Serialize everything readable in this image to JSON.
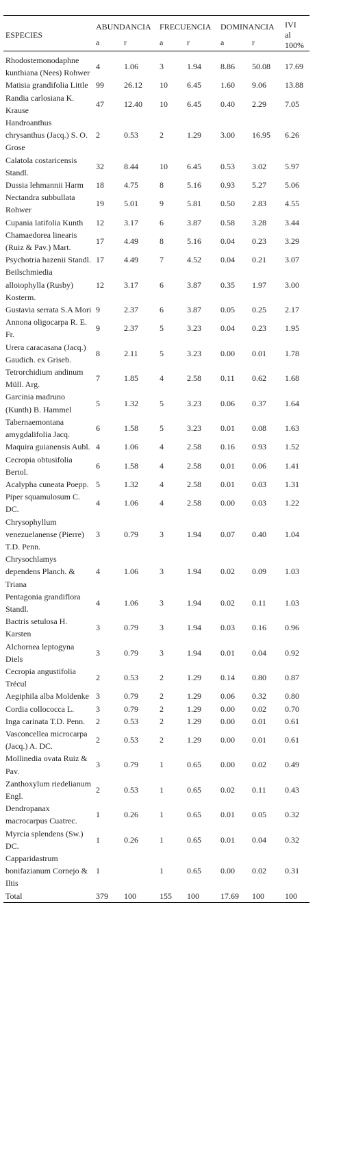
{
  "table": {
    "headers": {
      "species": "ESPECIES",
      "groups": [
        "ABUNDANCIA",
        "FRECUENCIA",
        "DOMINANCIA"
      ],
      "ivi": [
        "IVI",
        "al",
        "100%"
      ],
      "sub": [
        "a",
        "r",
        "a",
        "r",
        "a",
        "r"
      ]
    },
    "rows": [
      [
        "Rhodostemonodaphne kunthiana (Nees) Rohwer",
        "4",
        "1.06",
        "3",
        "1.94",
        "8.86",
        "50.08",
        "17.69"
      ],
      [
        "Matisia grandifolia Little",
        "99",
        "26.12",
        "10",
        "6.45",
        "1.60",
        "9.06",
        "13.88"
      ],
      [
        "Randia carlosiana K. Krause",
        "47",
        "12.40",
        "10",
        "6.45",
        "0.40",
        "2.29",
        "7.05"
      ],
      [
        "Handroanthus chrysanthus (Jacq.) S. O. Grose",
        "2",
        "0.53",
        "2",
        "1.29",
        "3.00",
        "16.95",
        "6.26"
      ],
      [
        "Calatola costaricensis Standl.",
        "32",
        "8.44",
        "10",
        "6.45",
        "0.53",
        "3.02",
        "5.97"
      ],
      [
        "Dussia lehmannii Harm",
        "18",
        "4.75",
        "8",
        "5.16",
        "0.93",
        "5.27",
        "5.06"
      ],
      [
        "Nectandra subbullata Rohwer",
        "19",
        "5.01",
        "9",
        "5.81",
        "0.50",
        "2.83",
        "4.55"
      ],
      [
        "Cupania latifolia Kunth",
        "12",
        "3.17",
        "6",
        "3.87",
        "0.58",
        "3.28",
        "3.44"
      ],
      [
        "Chamaedorea linearis (Ruiz & Pav.) Mart.",
        "17",
        "4.49",
        "8",
        "5.16",
        "0.04",
        "0.23",
        "3.29"
      ],
      [
        "Psychotria hazenii Standl.",
        "17",
        "4.49",
        "7",
        "4.52",
        "0.04",
        "0.21",
        "3.07"
      ],
      [
        "Beilschmiedia alloiophylla (Rusby) Kosterm.",
        "12",
        "3.17",
        "6",
        "3.87",
        "0.35",
        "1.97",
        "3.00"
      ],
      [
        "Gustavia serrata S.A Mori",
        "9",
        "2.37",
        "6",
        "3.87",
        "0.05",
        "0.25",
        "2.17"
      ],
      [
        "Annona oligocarpa R. E. Fr.",
        "9",
        "2.37",
        "5",
        "3.23",
        "0.04",
        "0.23",
        "1.95"
      ],
      [
        "Urera caracasana (Jacq.) Gaudich. ex Griseb.",
        "8",
        "2.11",
        "5",
        "3.23",
        "0.00",
        "0.01",
        "1.78"
      ],
      [
        "Tetrorchidium andinum Müll. Arg.",
        "7",
        "1.85",
        "4",
        "2.58",
        "0.11",
        "0.62",
        "1.68"
      ],
      [
        "Garcinia madruno (Kunth) B. Hammel",
        "5",
        "1.32",
        "5",
        "3.23",
        "0.06",
        "0.37",
        "1.64"
      ],
      [
        "Tabernaemontana amygdalifolia Jacq.",
        "6",
        "1.58",
        "5",
        "3.23",
        "0.01",
        "0.08",
        "1.63"
      ],
      [
        "Maquira guianensis Aubl.",
        "4",
        "1.06",
        "4",
        "2.58",
        "0.16",
        "0.93",
        "1.52"
      ],
      [
        "Cecropia obtusifolia Bertol.",
        "6",
        "1.58",
        "4",
        "2.58",
        "0.01",
        "0.06",
        "1.41"
      ],
      [
        "Acalypha cuneata Poepp.",
        "5",
        "1.32",
        "4",
        "2.58",
        "0.01",
        "0.03",
        "1.31"
      ],
      [
        "Piper squamulosum C. DC.",
        "4",
        "1.06",
        "4",
        "2.58",
        "0.00",
        "0.03",
        "1.22"
      ],
      [
        "Chrysophyllum venezuelanense (Pierre) T.D. Penn.",
        "3",
        "0.79",
        "3",
        "1.94",
        "0.07",
        "0.40",
        "1.04"
      ],
      [
        "Chrysochlamys dependens Planch. & Triana",
        "4",
        "1.06",
        "3",
        "1.94",
        "0.02",
        "0.09",
        "1.03"
      ],
      [
        "Pentagonia grandiflora Standl.",
        "4",
        "1.06",
        "3",
        "1.94",
        "0.02",
        "0.11",
        "1.03"
      ],
      [
        "Bactris setulosa H. Karsten",
        "3",
        "0.79",
        "3",
        "1.94",
        "0.03",
        "0.16",
        "0.96"
      ],
      [
        "Alchornea leptogyna Diels",
        "3",
        "0.79",
        "3",
        "1.94",
        "0.01",
        "0.04",
        "0.92"
      ],
      [
        "Cecropia angustifolia Trécul",
        "2",
        "0.53",
        "2",
        "1.29",
        "0.14",
        "0.80",
        "0.87"
      ],
      [
        "Aegiphila alba Moldenke",
        "3",
        "0.79",
        "2",
        "1.29",
        "0.06",
        "0.32",
        "0.80"
      ],
      [
        "Cordia collococca L.",
        "3",
        "0.79",
        "2",
        "1.29",
        "0.00",
        "0.02",
        "0.70"
      ],
      [
        "Inga carinata T.D. Penn.",
        "2",
        "0.53",
        "2",
        "1.29",
        "0.00",
        "0.01",
        "0.61"
      ],
      [
        "Vasconcellea microcarpa (Jacq.) A. DC.",
        "2",
        "0.53",
        "2",
        "1.29",
        "0.00",
        "0.01",
        "0.61"
      ],
      [
        "Mollinedia ovata Ruiz & Pav.",
        "3",
        "0.79",
        "1",
        "0.65",
        "0.00",
        "0.02",
        "0.49"
      ],
      [
        "Zanthoxylum riedelianum Engl.",
        "2",
        "0.53",
        "1",
        "0.65",
        "0.02",
        "0.11",
        "0.43"
      ],
      [
        "Dendropanax macrocarpus Cuatrec.",
        "1",
        "0.26",
        "1",
        "0.65",
        "0.01",
        "0.05",
        "0.32"
      ],
      [
        "Myrcia splendens (Sw.) DC.",
        "1",
        "0.26",
        "1",
        "0.65",
        "0.01",
        "0.04",
        "0.32"
      ],
      [
        "Capparidastrum bonifazianum Cornejo & Iltis",
        "1",
        null,
        "1",
        "0.65",
        "0.00",
        "0.02",
        "0.31"
      ],
      [
        "Total",
        "379",
        "100",
        "155",
        "100",
        "17.69",
        "100",
        "100"
      ]
    ]
  }
}
